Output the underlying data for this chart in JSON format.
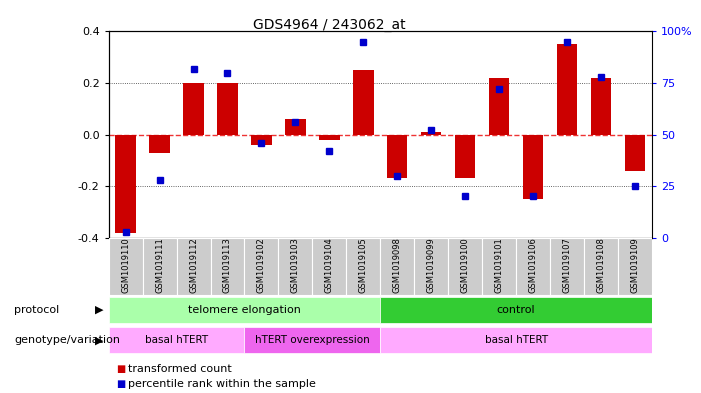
{
  "title": "GDS4964 / 243062_at",
  "samples": [
    "GSM1019110",
    "GSM1019111",
    "GSM1019112",
    "GSM1019113",
    "GSM1019102",
    "GSM1019103",
    "GSM1019104",
    "GSM1019105",
    "GSM1019098",
    "GSM1019099",
    "GSM1019100",
    "GSM1019101",
    "GSM1019106",
    "GSM1019107",
    "GSM1019108",
    "GSM1019109"
  ],
  "transformed_count": [
    -0.38,
    -0.07,
    0.2,
    0.2,
    -0.04,
    0.06,
    -0.02,
    0.25,
    -0.17,
    0.01,
    -0.17,
    0.22,
    -0.25,
    0.35,
    0.22,
    -0.14
  ],
  "percentile_rank": [
    3,
    28,
    82,
    80,
    46,
    56,
    42,
    95,
    30,
    52,
    20,
    72,
    20,
    95,
    78,
    25
  ],
  "ylim_left": [
    -0.4,
    0.4
  ],
  "ylim_right": [
    0,
    100
  ],
  "yticks_left": [
    -0.4,
    -0.2,
    0.0,
    0.2,
    0.4
  ],
  "yticks_right": [
    0,
    25,
    50,
    75,
    100
  ],
  "ytick_labels_right": [
    "0",
    "25",
    "50",
    "75",
    "100%"
  ],
  "bar_color": "#cc0000",
  "dot_color": "#0000cc",
  "zero_line_color": "#ee3333",
  "grid_color": "#333333",
  "protocol_telomere_label": "telomere elongation",
  "protocol_telomere_color": "#aaffaa",
  "protocol_control_label": "control",
  "protocol_control_color": "#33cc33",
  "genotype_basal1_label": "basal hTERT",
  "genotype_basal1_color": "#ffaaff",
  "genotype_htert_label": "hTERT overexpression",
  "genotype_htert_color": "#ee66ee",
  "genotype_basal2_label": "basal hTERT",
  "genotype_basal2_color": "#ffaaff",
  "bg_color": "#ffffff",
  "sample_bg_color": "#cccccc",
  "legend_bar_label": "transformed count",
  "legend_dot_label": "percentile rank within the sample",
  "protocol_row_label": "protocol",
  "genotype_row_label": "genotype/variation"
}
